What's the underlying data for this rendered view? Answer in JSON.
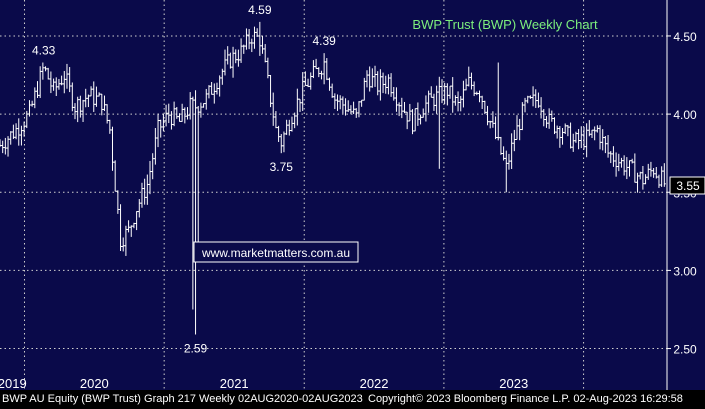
{
  "chart_data": {
    "type": "ohlc",
    "title": "BWP Trust (BWP) Weekly Chart",
    "watermark": "www.marketmatters.com.au",
    "y_axis": {
      "ticks": [
        "2.50",
        "3.00",
        "3.50",
        "4.00",
        "4.50"
      ],
      "tick_values": [
        2.5,
        3.0,
        3.5,
        4.0,
        4.5
      ],
      "range": [
        2.35,
        4.73
      ],
      "grid": "dotted",
      "position": "right"
    },
    "x_axis": {
      "year_labels": [
        "2019",
        "2020",
        "2021",
        "2022",
        "2023"
      ],
      "range": [
        "2018-10-29",
        "2023-08-07"
      ]
    },
    "last_price": {
      "label": "3.55",
      "value": 3.55
    },
    "annotations": [
      {
        "text": "4.33",
        "date": "2019-02-20",
        "value": 4.33
      },
      {
        "text": "2.59",
        "date": "2020-03-23",
        "value": 2.59
      },
      {
        "text": "4.59",
        "date": "2020-09-07",
        "value": 4.59
      },
      {
        "text": "3.75",
        "date": "2020-11-02",
        "value": 3.75
      },
      {
        "text": "4.39",
        "date": "2021-02-22",
        "value": 4.39
      }
    ],
    "anchors": [
      [
        "2018-10-29",
        3.8
      ],
      [
        "2018-12-10",
        3.9
      ],
      [
        "2019-01-14",
        4.0
      ],
      [
        "2019-02-20",
        4.3
      ],
      [
        "2019-03-18",
        4.15
      ],
      [
        "2019-04-15",
        4.25
      ],
      [
        "2019-05-13",
        4.05
      ],
      [
        "2019-06-17",
        4.12
      ],
      [
        "2019-07-22",
        4.08
      ],
      [
        "2019-08-12",
        3.9
      ],
      [
        "2019-09-09",
        3.2
      ],
      [
        "2019-09-30",
        3.25
      ],
      [
        "2019-10-21",
        3.4
      ],
      [
        "2019-11-18",
        3.55
      ],
      [
        "2019-12-16",
        3.9
      ],
      [
        "2020-01-13",
        4.0
      ],
      [
        "2020-02-10",
        3.95
      ],
      [
        "2020-03-09",
        4.05
      ],
      [
        "2020-03-23",
        4.05
      ],
      [
        "2020-04-20",
        4.1
      ],
      [
        "2020-05-25",
        4.25
      ],
      [
        "2020-06-22",
        4.35
      ],
      [
        "2020-07-20",
        4.4
      ],
      [
        "2020-08-17",
        4.5
      ],
      [
        "2020-09-07",
        4.48
      ],
      [
        "2020-09-28",
        4.2
      ],
      [
        "2020-10-19",
        3.9
      ],
      [
        "2020-11-02",
        3.82
      ],
      [
        "2020-11-30",
        4.0
      ],
      [
        "2020-12-28",
        4.15
      ],
      [
        "2021-01-25",
        4.25
      ],
      [
        "2021-02-22",
        4.33
      ],
      [
        "2021-03-22",
        4.1
      ],
      [
        "2021-04-19",
        4.05
      ],
      [
        "2021-05-17",
        3.98
      ],
      [
        "2021-06-14",
        4.25
      ],
      [
        "2021-07-12",
        4.18
      ],
      [
        "2021-08-09",
        4.22
      ],
      [
        "2021-09-13",
        4.05
      ],
      [
        "2021-10-11",
        3.95
      ],
      [
        "2021-11-08",
        4.05
      ],
      [
        "2021-12-06",
        4.1
      ],
      [
        "2022-01-10",
        4.15
      ],
      [
        "2022-02-07",
        4.05
      ],
      [
        "2022-03-07",
        4.2
      ],
      [
        "2022-04-04",
        4.15
      ],
      [
        "2022-05-02",
        3.95
      ],
      [
        "2022-06-13",
        3.65
      ],
      [
        "2022-07-04",
        3.85
      ],
      [
        "2022-08-01",
        4.05
      ],
      [
        "2022-09-05",
        4.1
      ],
      [
        "2022-10-03",
        3.95
      ],
      [
        "2022-11-07",
        3.9
      ],
      [
        "2022-12-05",
        3.82
      ],
      [
        "2023-01-16",
        3.85
      ],
      [
        "2023-02-06",
        3.9
      ],
      [
        "2023-03-06",
        3.75
      ],
      [
        "2023-04-03",
        3.7
      ],
      [
        "2023-05-01",
        3.65
      ],
      [
        "2023-06-05",
        3.58
      ],
      [
        "2023-07-03",
        3.65
      ],
      [
        "2023-08-02",
        3.55
      ]
    ],
    "spikes": [
      {
        "date": "2019-02-20",
        "high": 4.33
      },
      {
        "date": "2020-03-23",
        "low": 2.59
      },
      {
        "date": "2020-03-16",
        "low": 2.75
      },
      {
        "date": "2020-03-30",
        "low": 3.1
      },
      {
        "date": "2020-09-07",
        "high": 4.59
      },
      {
        "date": "2020-11-02",
        "low": 3.75
      },
      {
        "date": "2021-02-22",
        "high": 4.39
      },
      {
        "date": "2022-05-23",
        "high": 4.33
      },
      {
        "date": "2022-06-13",
        "low": 3.5
      },
      {
        "date": "2021-12-20",
        "low": 3.65
      }
    ]
  },
  "footer": {
    "left": "BWP AU Equity (BWP Trust) Graph 217  Weekly 02AUG2020-02AUG2023",
    "right": "Copyright© 2023 Bloomberg Finance L.P.  02-Aug-2023 16:29:58"
  },
  "colors": {
    "background": "#0a0a4a",
    "bars": "#ffffff",
    "title": "#7df07d",
    "watermark": "#ffffff",
    "axis_text": "#ffffff"
  }
}
